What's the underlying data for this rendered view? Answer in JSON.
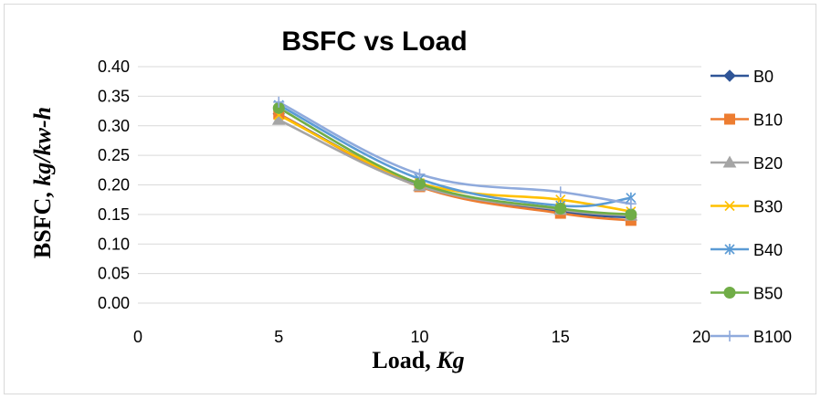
{
  "chart_data": {
    "type": "line",
    "title": "BSFC vs Load",
    "xlabel": {
      "main": "Load, ",
      "italic": "Kg"
    },
    "ylabel": {
      "main": "BSFC, ",
      "italic": "kg/kw-h"
    },
    "xlim": [
      0,
      20
    ],
    "ylim": [
      0,
      0.4
    ],
    "x_ticks": [
      "0",
      "5",
      "10",
      "15",
      "20"
    ],
    "y_ticks": [
      "0.00",
      "0.05",
      "0.10",
      "0.15",
      "0.20",
      "0.25",
      "0.30",
      "0.35",
      "0.40"
    ],
    "grid": true,
    "legend_position": "right",
    "x": [
      5,
      10,
      15,
      17.5
    ],
    "series": [
      {
        "name": "B0",
        "color": "#2F5597",
        "marker": "diamond",
        "values": [
          0.32,
          0.2,
          0.155,
          0.145
        ]
      },
      {
        "name": "B10",
        "color": "#ED7D31",
        "marker": "square",
        "values": [
          0.32,
          0.197,
          0.152,
          0.14
        ]
      },
      {
        "name": "B20",
        "color": "#A5A5A5",
        "marker": "triangle",
        "values": [
          0.31,
          0.198,
          0.158,
          0.148
        ]
      },
      {
        "name": "B30",
        "color": "#FFC000",
        "marker": "x",
        "values": [
          0.318,
          0.203,
          0.175,
          0.155
        ]
      },
      {
        "name": "B40",
        "color": "#5B9BD5",
        "marker": "star",
        "values": [
          0.335,
          0.21,
          0.165,
          0.178
        ]
      },
      {
        "name": "B50",
        "color": "#70AD47",
        "marker": "circle",
        "values": [
          0.33,
          0.202,
          0.16,
          0.15
        ]
      },
      {
        "name": "B100",
        "color": "#8FAADC",
        "marker": "plus",
        "values": [
          0.34,
          0.218,
          0.188,
          0.168
        ]
      }
    ]
  }
}
